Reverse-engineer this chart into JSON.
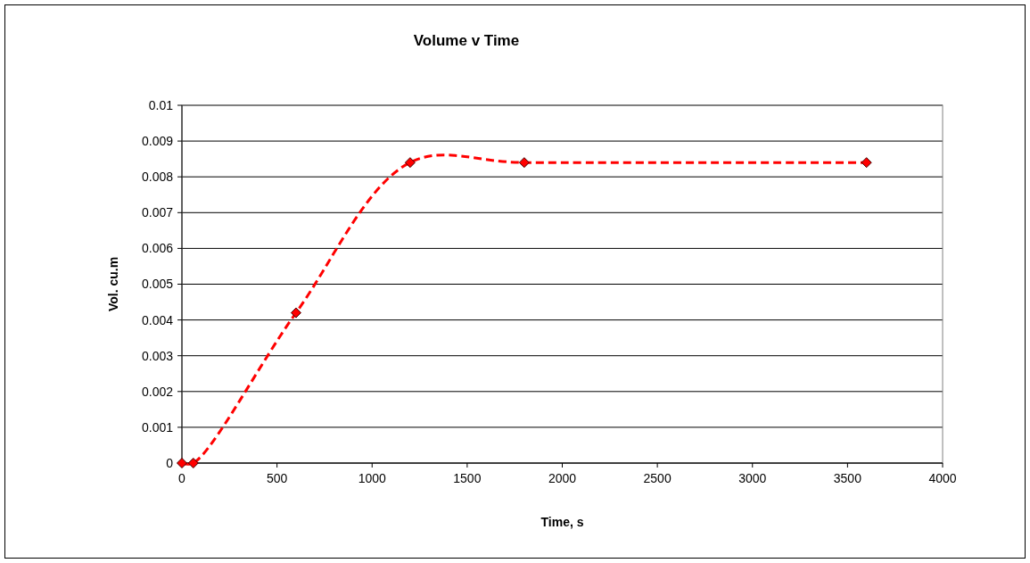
{
  "chart_data": {
    "type": "line",
    "title": "Volume v Time",
    "xlabel": "Time, s",
    "ylabel": "Vol. cu.m",
    "x": [
      0,
      60,
      600,
      1200,
      1800,
      3600
    ],
    "series": [
      {
        "color": "#ff0000",
        "values": [
          0,
          0,
          0.0042,
          0.0084,
          0.0084,
          0.0084
        ]
      }
    ],
    "xlim": [
      0,
      4000
    ],
    "xticks": [
      0,
      500,
      1000,
      1500,
      2000,
      2500,
      3000,
      3500,
      4000
    ],
    "ylim": [
      0,
      0.01
    ],
    "yticks": [
      0,
      0.001,
      0.002,
      0.003,
      0.004,
      0.005,
      0.006,
      0.007,
      0.008,
      0.009,
      0.01
    ],
    "grid": "y",
    "marker": "diamond",
    "line_style": "dashed"
  }
}
